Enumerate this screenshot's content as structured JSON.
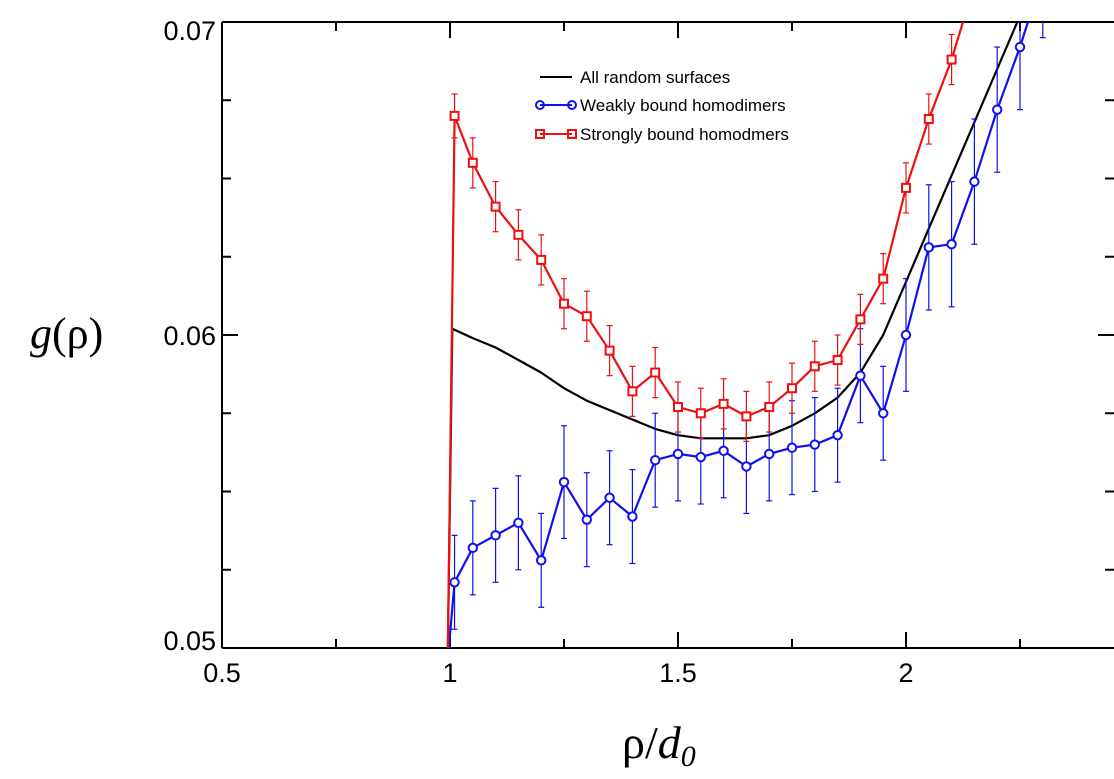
{
  "chart_data": {
    "type": "line",
    "title": "",
    "xlabel": {
      "main": "ρ/",
      "italic": "d",
      "sub": "0"
    },
    "ylabel": {
      "italic": "g",
      "paren": "(ρ)"
    },
    "xlim": [
      0.5,
      2.5
    ],
    "ylim": [
      0.05,
      0.07
    ],
    "x_ticks": [
      {
        "value": 0.5,
        "label": "0.5"
      },
      {
        "value": 1,
        "label": "1"
      },
      {
        "value": 1.5,
        "label": "1.5"
      },
      {
        "value": 2,
        "label": "2"
      }
    ],
    "y_ticks": [
      {
        "value": 0.05,
        "label": "0.05"
      },
      {
        "value": 0.06,
        "label": "0.06"
      },
      {
        "value": 0.07,
        "label": "0.07"
      }
    ],
    "x_minor_ticks": [
      0.75,
      1.25,
      1.75,
      2.25
    ],
    "y_minor_ticks": [
      0.055,
      0.065
    ],
    "grid": false,
    "legend_position": "top-center",
    "series": [
      {
        "name": "All random surfaces",
        "color": "#000000",
        "marker": "none",
        "x": [
          0.995,
          1.005,
          1.05,
          1.1,
          1.15,
          1.2,
          1.25,
          1.3,
          1.35,
          1.4,
          1.45,
          1.5,
          1.55,
          1.6,
          1.65,
          1.7,
          1.75,
          1.8,
          1.85,
          1.9,
          1.95,
          2.0,
          2.05,
          2.1,
          2.15,
          2.2,
          2.25,
          2.3
        ],
        "y": [
          0.0496,
          0.0602,
          0.0599,
          0.0596,
          0.0592,
          0.0588,
          0.0583,
          0.0579,
          0.0576,
          0.0573,
          0.057,
          0.0568,
          0.0567,
          0.0567,
          0.0567,
          0.0568,
          0.0571,
          0.0575,
          0.058,
          0.0588,
          0.06,
          0.0617,
          0.0634,
          0.0651,
          0.0668,
          0.0685,
          0.0702,
          0.072
        ]
      },
      {
        "name": "Weakly bound homodimers",
        "color": "#1010ee",
        "marker": "circle",
        "x": [
          0.995,
          1.01,
          1.05,
          1.1,
          1.15,
          1.2,
          1.25,
          1.3,
          1.35,
          1.4,
          1.45,
          1.5,
          1.55,
          1.6,
          1.65,
          1.7,
          1.75,
          1.8,
          1.85,
          1.9,
          1.95,
          2.0,
          2.05,
          2.1,
          2.15,
          2.2,
          2.25,
          2.3
        ],
        "y": [
          0.0496,
          0.0521,
          0.0532,
          0.0536,
          0.054,
          0.0528,
          0.0553,
          0.0541,
          0.0548,
          0.0542,
          0.056,
          0.0562,
          0.0561,
          0.0563,
          0.0558,
          0.0562,
          0.0564,
          0.0565,
          0.0568,
          0.0587,
          0.0575,
          0.06,
          0.0628,
          0.0629,
          0.0649,
          0.0672,
          0.0692,
          0.0715
        ],
        "errors": [
          0,
          0.0015,
          0.0015,
          0.0015,
          0.0015,
          0.0015,
          0.0018,
          0.0015,
          0.0015,
          0.0015,
          0.0015,
          0.0015,
          0.0015,
          0.0015,
          0.0015,
          0.0015,
          0.0015,
          0.0015,
          0.0015,
          0.0015,
          0.0015,
          0.0018,
          0.002,
          0.002,
          0.002,
          0.002,
          0.002,
          0.002
        ],
        "markers_from_index": 1
      },
      {
        "name": "Strongly bound homodmers",
        "color": "#ee1010",
        "marker": "square",
        "x": [
          0.995,
          1.01,
          1.05,
          1.1,
          1.15,
          1.2,
          1.25,
          1.3,
          1.35,
          1.4,
          1.45,
          1.5,
          1.55,
          1.6,
          1.65,
          1.7,
          1.75,
          1.8,
          1.85,
          1.9,
          1.95,
          2.0,
          2.05,
          2.1,
          2.15
        ],
        "y": [
          0.0496,
          0.067,
          0.0655,
          0.0641,
          0.0632,
          0.0624,
          0.061,
          0.0606,
          0.0595,
          0.0582,
          0.0588,
          0.0577,
          0.0575,
          0.0578,
          0.0574,
          0.0577,
          0.0583,
          0.059,
          0.0592,
          0.0605,
          0.0618,
          0.0647,
          0.0669,
          0.0688,
          0.0712
        ],
        "errors": [
          0,
          0.0007,
          0.0008,
          0.0008,
          0.0008,
          0.0008,
          0.0008,
          0.0008,
          0.0008,
          0.0008,
          0.0008,
          0.0008,
          0.0008,
          0.0008,
          0.0008,
          0.0008,
          0.0008,
          0.0008,
          0.0008,
          0.0008,
          0.0008,
          0.0008,
          0.0008,
          0.0008,
          0.0008
        ],
        "markers_from_index": 1
      }
    ]
  }
}
